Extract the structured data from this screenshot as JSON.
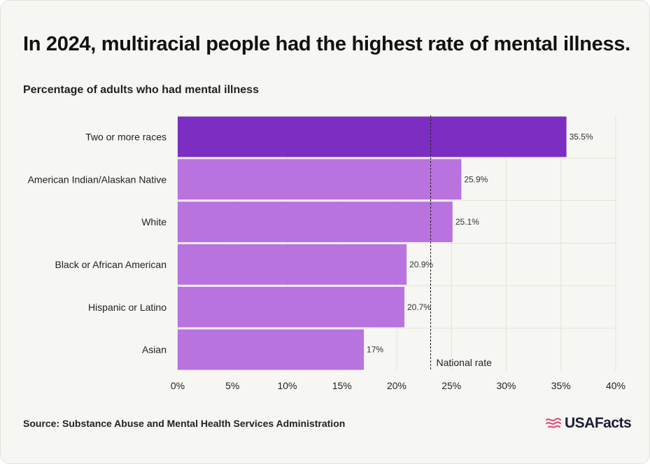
{
  "title": "In 2024, multiracial people had the highest rate of mental illness.",
  "source": "Source: Substance Abuse and Mental Health Services Administration",
  "logo": {
    "text": "USAFacts",
    "icon": "usa-flag-icon"
  },
  "colors": {
    "highlight_bar": "#7d2ec2",
    "bar": "#b873de",
    "background": "#f6f6f2",
    "grid": "#e3e3de",
    "logo_icon": "#e0447a"
  },
  "chart_data": {
    "type": "bar",
    "orientation": "horizontal",
    "subtitle": "Percentage of adults who had mental illness",
    "categories": [
      "Two or more races",
      "American Indian/Alaskan Native",
      "White",
      "Black or African American",
      "Hispanic or Latino",
      "Asian"
    ],
    "values": [
      35.5,
      25.9,
      25.1,
      20.9,
      20.7,
      17
    ],
    "value_labels": [
      "35.5%",
      "25.9%",
      "25.1%",
      "20.9%",
      "20.7%",
      "17%"
    ],
    "highlighted_index": 0,
    "xlim": [
      0,
      40
    ],
    "xticks": [
      0,
      5,
      10,
      15,
      20,
      25,
      30,
      35,
      40
    ],
    "xtick_labels": [
      "0%",
      "5%",
      "10%",
      "15%",
      "20%",
      "25%",
      "30%",
      "35%",
      "40%"
    ],
    "reference_line": {
      "value": 23.1,
      "label": "National rate",
      "style": "dashed"
    },
    "grid": true
  }
}
